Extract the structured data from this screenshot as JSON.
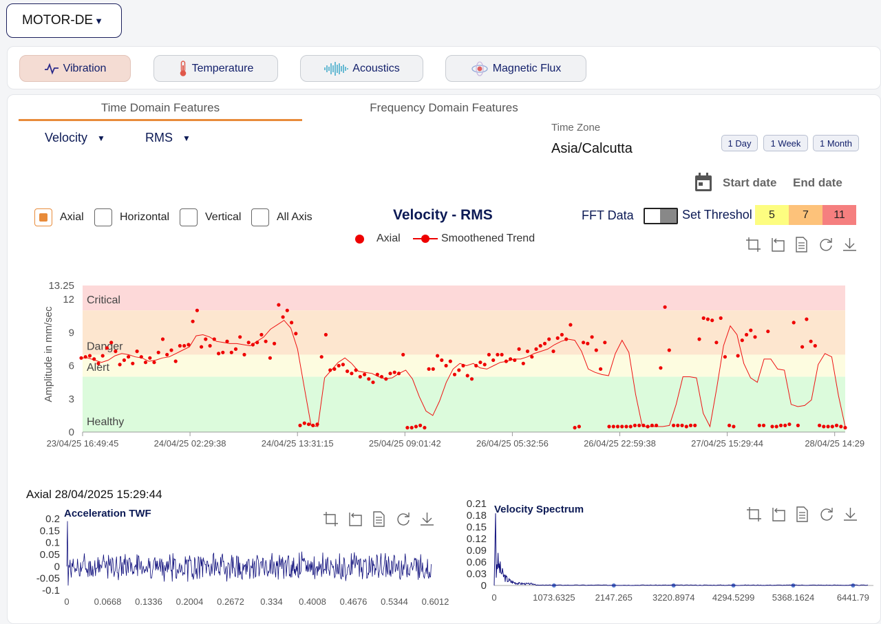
{
  "asset": {
    "selected": "MOTOR-DE"
  },
  "sensor_tabs": [
    {
      "label": "Vibration",
      "icon": "waveform-icon",
      "active": true
    },
    {
      "label": "Temperature",
      "icon": "thermometer-icon",
      "active": false
    },
    {
      "label": "Acoustics",
      "icon": "sound-wave-icon",
      "active": false
    },
    {
      "label": "Magnetic Flux",
      "icon": "magnet-flux-icon",
      "active": false
    }
  ],
  "feature_tabs": {
    "time_domain": "Time Domain Features",
    "frequency_domain": "Frequency Domain Features",
    "active": "time_domain"
  },
  "filters": {
    "measure": "Velocity",
    "stat": "RMS"
  },
  "time_zone": {
    "label": "Time Zone",
    "value": "Asia/Calcutta"
  },
  "ranges": [
    "1 Day",
    "1 Week",
    "1 Month"
  ],
  "dates": {
    "start": "Start date",
    "end": "End date"
  },
  "axis_checkboxes": [
    {
      "label": "Axial",
      "checked": true
    },
    {
      "label": "Horizontal",
      "checked": false
    },
    {
      "label": "Vertical",
      "checked": false
    },
    {
      "label": "All Axis",
      "checked": false
    }
  ],
  "fft": {
    "label": "FFT Data"
  },
  "threshold": {
    "label": "Set Threshol",
    "values": [
      "5",
      "7",
      "11"
    ],
    "colors": [
      "#fdfd80",
      "#fdc27a",
      "#f57f7f"
    ]
  },
  "toolbar_icons": [
    "crop-icon",
    "undo-icon",
    "document-icon",
    "refresh-icon",
    "download-icon"
  ],
  "chart_data": [
    {
      "type": "scatter",
      "title": "Velocity - RMS",
      "ylabel": "Amplitude in mm/sec",
      "ylim": [
        0,
        13.25
      ],
      "yticks": [
        "13.25",
        "12",
        "9",
        "6",
        "3",
        "0"
      ],
      "xticks": [
        "23/04/25 16:49:45",
        "24/04/25 02:29:38",
        "24/04/25 13:31:15",
        "25/04/25 09:01:42",
        "26/04/25 05:32:56",
        "26/04/25 22:59:38",
        "27/04/25 15:29:44",
        "28/04/25 14:29"
      ],
      "legend": [
        "Axial",
        "Smoothened Trend"
      ],
      "zones": [
        {
          "name": "Critical",
          "from": 11,
          "to": 13.25,
          "color": "#fdd9d9"
        },
        {
          "name": "Danger",
          "from": 7,
          "to": 11,
          "color": "#fde6cf"
        },
        {
          "name": "Alert",
          "from": 5,
          "to": 7,
          "color": "#fdfce0"
        },
        {
          "name": "Healthy",
          "from": 0,
          "to": 5,
          "color": "#dcfbdc"
        }
      ],
      "series": [
        {
          "name": "Axial",
          "values": [
            6.7,
            6.8,
            6.9,
            6.6,
            6.2,
            6.9,
            7.6,
            8.1,
            7.3,
            6.1,
            6.5,
            6.8,
            6.2,
            7.3,
            6.8,
            6.3,
            6.7,
            6.3,
            7.2,
            8.4,
            7.0,
            7.4,
            6.4,
            7.8,
            7.8,
            7.9,
            10.0,
            11.0,
            7.7,
            8.4,
            7.8,
            8.4,
            7.1,
            7.2,
            8.2,
            7.2,
            7.5,
            8.6,
            7.0,
            8.1,
            7.9,
            8.1,
            8.8,
            8.2,
            6.7,
            8.0,
            11.5,
            10.4,
            11.0,
            9.9,
            8.9,
            0.6,
            0.8,
            0.7,
            0.6,
            0.7,
            6.8,
            8.8,
            5.6,
            5.7,
            6.0,
            6.1,
            5.5,
            5.3,
            5.6,
            5.0,
            5.2,
            4.8,
            4.5,
            5.2,
            5.0,
            4.8,
            5.3,
            5.4,
            5.3,
            7.0,
            0.4,
            0.4,
            0.5,
            0.6,
            0.4,
            5.7,
            5.7,
            6.9,
            6.5,
            6.0,
            6.4,
            5.2,
            5.6,
            6.0,
            5.1,
            4.8,
            6.0,
            6.3,
            6.1,
            7.0,
            6.5,
            7.0,
            7.0,
            6.4,
            6.6,
            6.5,
            7.5,
            6.2,
            7.3,
            6.8,
            7.5,
            7.8,
            8.0,
            8.4,
            7.3,
            8.5,
            8.8,
            8.4,
            9.7,
            0.4,
            0.5,
            8.1,
            8.0,
            8.6,
            7.4,
            5.7,
            8.1,
            0.5,
            0.5,
            0.5,
            0.5,
            0.5,
            0.5,
            0.6,
            0.6,
            0.6,
            0.5,
            0.6,
            0.6,
            5.8,
            11.3,
            7.4,
            0.6,
            0.6,
            0.6,
            0.5,
            0.6,
            0.6,
            8.4,
            10.3,
            10.2,
            10.1,
            8.1,
            10.3,
            6.8,
            0.6,
            0.5,
            6.9,
            8.3,
            8.8,
            9.2,
            8.6,
            0.6,
            0.6,
            9.1,
            0.5,
            0.5,
            0.6,
            0.6,
            0.7,
            9.9,
            0.6,
            7.7,
            10.2,
            8.2,
            7.8,
            0.6,
            0.5,
            0.5,
            0.5,
            0.6,
            0.5,
            0.4
          ]
        },
        {
          "name": "Smoothened Trend",
          "values": [
            6.7,
            6.7,
            6.5,
            6.3,
            6.5,
            6.9,
            7.1,
            7.0,
            6.8,
            6.7,
            6.4,
            6.5,
            6.7,
            6.8,
            7.1,
            7.4,
            7.7,
            8.7,
            8.8,
            8.6,
            8.2,
            8.1,
            8.0,
            8.0,
            7.9,
            7.8,
            8.2,
            8.6,
            9.3,
            9.7,
            10.1,
            9.4,
            7.5,
            4.0,
            0.6,
            0.5,
            4.9,
            5.6,
            6.3,
            6.7,
            6.2,
            5.5,
            5.4,
            5.3,
            5.0,
            4.8,
            4.9,
            5.3,
            5.6,
            4.8,
            3.2,
            1.9,
            1.5,
            2.8,
            4.5,
            5.7,
            6.2,
            6.0,
            6.2,
            5.8,
            5.7,
            6.0,
            6.3,
            6.4,
            6.6,
            6.6,
            6.8,
            7.1,
            7.3,
            7.5,
            7.9,
            8.2,
            8.4,
            8.3,
            7.3,
            5.7,
            5.4,
            5.2,
            5.1,
            7.1,
            8.3,
            7.2,
            3.4,
            0.5,
            0.5,
            0.5,
            0.5,
            0.6,
            2.5,
            5.0,
            5.0,
            4.9,
            1.7,
            0.5,
            4.0,
            7.8,
            9.6,
            8.8,
            6.2,
            4.9,
            4.5,
            6.6,
            6.6,
            5.7,
            5.6,
            2.5,
            2.3,
            2.4,
            2.9,
            6.1,
            7.1,
            6.8,
            3.3,
            0.5
          ]
        }
      ]
    },
    {
      "type": "line",
      "title": "Acceleration TWF",
      "header": "Axial 28/04/2025 15:29:44",
      "xticks": [
        "0",
        "0.0668",
        "0.1336",
        "0.2004",
        "0.2672",
        "0.334",
        "0.4008",
        "0.4676",
        "0.5344",
        "0.6012"
      ],
      "yticks": [
        "0.2",
        "0.15",
        "0.1",
        "0.05",
        "0",
        "-0.05",
        "-0.1"
      ],
      "xlim": [
        0,
        0.63
      ],
      "ylim": [
        -0.12,
        0.2
      ]
    },
    {
      "type": "line",
      "title": "Velocity Spectrum",
      "xticks": [
        "0",
        "1073.6325",
        "2147.265",
        "3220.8974",
        "4294.5299",
        "5368.1624",
        "6441.79"
      ],
      "yticks": [
        "0.21",
        "0.18",
        "0.15",
        "0.12",
        "0.09",
        "0.06",
        "0.03",
        "0"
      ],
      "xlim": [
        0,
        6441.79
      ],
      "ylim": [
        0,
        0.21
      ]
    }
  ]
}
